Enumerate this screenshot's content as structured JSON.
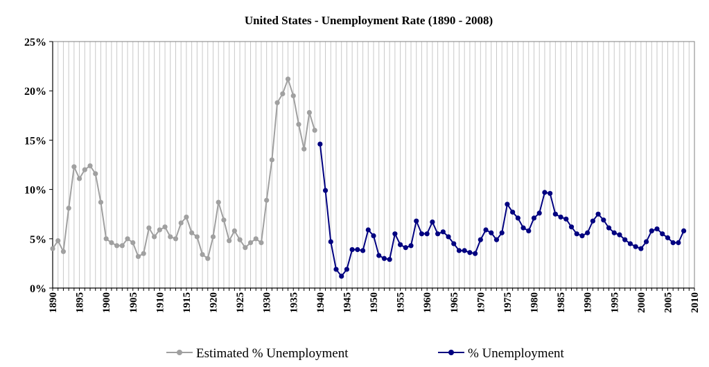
{
  "chart_data": {
    "type": "line",
    "title": "United States - Unemployment Rate (1890 - 2008)",
    "xlabel": "",
    "ylabel": "",
    "xlim": [
      1890,
      2010
    ],
    "ylim": [
      0,
      25
    ],
    "y_ticks": [
      0,
      5,
      10,
      15,
      20,
      25
    ],
    "y_tick_labels": [
      "0%",
      "5%",
      "10%",
      "15%",
      "20%",
      "25%"
    ],
    "x_ticks": [
      1890,
      1895,
      1900,
      1905,
      1910,
      1915,
      1920,
      1925,
      1930,
      1935,
      1940,
      1945,
      1950,
      1955,
      1960,
      1965,
      1970,
      1975,
      1980,
      1985,
      1990,
      1995,
      2000,
      2005,
      2010
    ],
    "x_tick_labels": [
      "1890",
      "1895",
      "1900",
      "1905",
      "1910",
      "1915",
      "1920",
      "1925",
      "1930",
      "1935",
      "1940",
      "1945",
      "1950",
      "1955",
      "1960",
      "1965",
      "1970",
      "1975",
      "1980",
      "1985",
      "1990",
      "1995",
      "2000",
      "2005",
      "2010"
    ],
    "grid": "vertical",
    "legend": "bottom",
    "series": [
      {
        "name": "Estimated % Unemployment",
        "color": "#a0a0a0",
        "x": [
          1890,
          1891,
          1892,
          1893,
          1894,
          1895,
          1896,
          1897,
          1898,
          1899,
          1900,
          1901,
          1902,
          1903,
          1904,
          1905,
          1906,
          1907,
          1908,
          1909,
          1910,
          1911,
          1912,
          1913,
          1914,
          1915,
          1916,
          1917,
          1918,
          1919,
          1920,
          1921,
          1922,
          1923,
          1924,
          1925,
          1926,
          1927,
          1928,
          1929,
          1930,
          1931,
          1932,
          1933,
          1934,
          1935,
          1936,
          1937,
          1938,
          1939
        ],
        "values": [
          4.0,
          4.8,
          3.7,
          8.1,
          12.3,
          11.1,
          12.0,
          12.4,
          11.6,
          8.7,
          5.0,
          4.6,
          4.3,
          4.3,
          5.0,
          4.6,
          3.2,
          3.5,
          6.1,
          5.2,
          5.9,
          6.2,
          5.2,
          5.0,
          6.6,
          7.2,
          5.6,
          5.2,
          3.4,
          3.0,
          5.2,
          8.7,
          6.9,
          4.8,
          5.8,
          4.9,
          4.1,
          4.6,
          5.0,
          4.6,
          8.9,
          13.0,
          18.8,
          19.7,
          21.2,
          19.5,
          16.6,
          14.1,
          17.8,
          16.0
        ]
      },
      {
        "name": "% Unemployment",
        "color": "#000080",
        "x": [
          1940,
          1941,
          1942,
          1943,
          1944,
          1945,
          1946,
          1947,
          1948,
          1949,
          1950,
          1951,
          1952,
          1953,
          1954,
          1955,
          1956,
          1957,
          1958,
          1959,
          1960,
          1961,
          1962,
          1963,
          1964,
          1965,
          1966,
          1967,
          1968,
          1969,
          1970,
          1971,
          1972,
          1973,
          1974,
          1975,
          1976,
          1977,
          1978,
          1979,
          1980,
          1981,
          1982,
          1983,
          1984,
          1985,
          1986,
          1987,
          1988,
          1989,
          1990,
          1991,
          1992,
          1993,
          1994,
          1995,
          1996,
          1997,
          1998,
          1999,
          2000,
          2001,
          2002,
          2003,
          2004,
          2005,
          2006,
          2007,
          2008
        ],
        "values": [
          14.6,
          9.9,
          4.7,
          1.9,
          1.2,
          1.9,
          3.9,
          3.9,
          3.8,
          5.9,
          5.3,
          3.3,
          3.0,
          2.9,
          5.5,
          4.4,
          4.1,
          4.3,
          6.8,
          5.5,
          5.5,
          6.7,
          5.5,
          5.7,
          5.2,
          4.5,
          3.8,
          3.8,
          3.6,
          3.5,
          4.9,
          5.9,
          5.6,
          4.9,
          5.6,
          8.5,
          7.7,
          7.1,
          6.1,
          5.8,
          7.1,
          7.6,
          9.7,
          9.6,
          7.5,
          7.2,
          7.0,
          6.2,
          5.5,
          5.3,
          5.6,
          6.8,
          7.5,
          6.9,
          6.1,
          5.6,
          5.4,
          4.9,
          4.5,
          4.2,
          4.0,
          4.7,
          5.8,
          6.0,
          5.5,
          5.1,
          4.6,
          4.6,
          5.8
        ]
      }
    ]
  }
}
